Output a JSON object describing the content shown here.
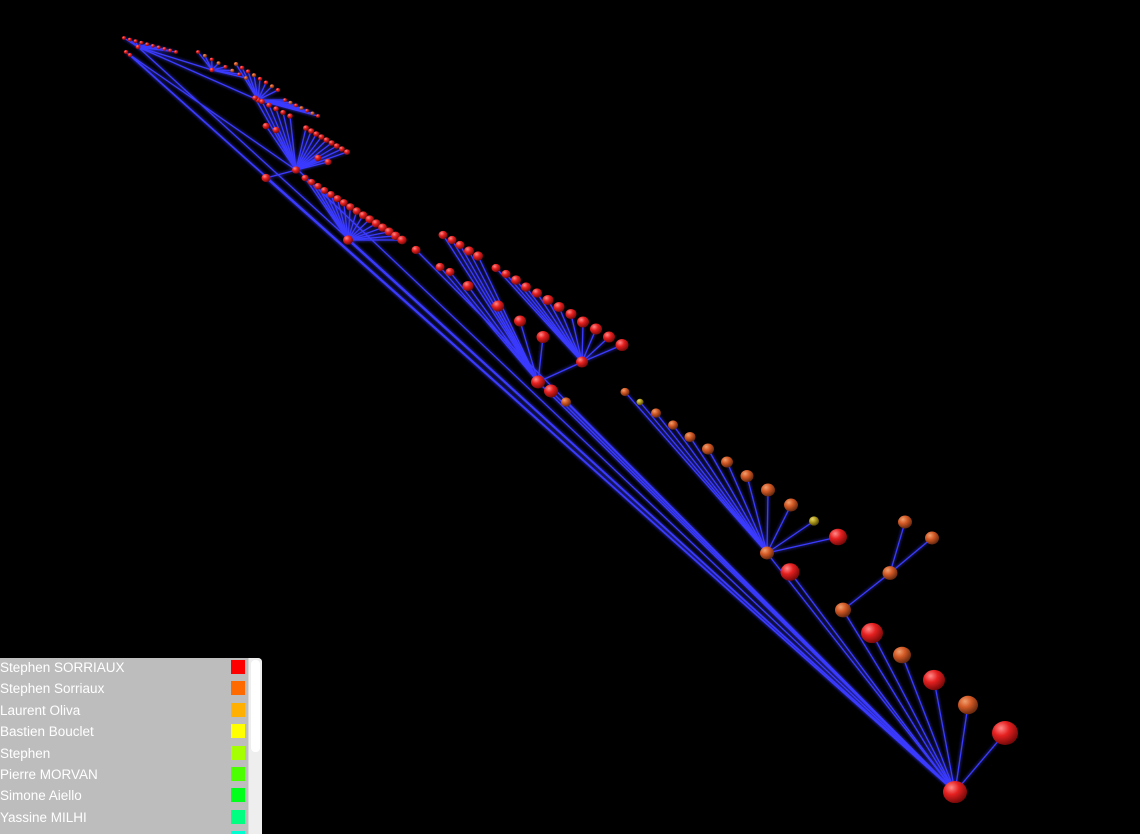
{
  "legend": {
    "items": [
      {
        "label": "Stephen SORRIAUX",
        "color": "#ff0000"
      },
      {
        "label": "Stephen Sorriaux",
        "color": "#ff6a00"
      },
      {
        "label": "Laurent Oliva",
        "color": "#ffb000"
      },
      {
        "label": "Bastien Bouclet",
        "color": "#ffff00"
      },
      {
        "label": "Stephen",
        "color": "#a6ff00"
      },
      {
        "label": "Pierre MORVAN",
        "color": "#4cff00"
      },
      {
        "label": "Simone Aiello",
        "color": "#00ff1a"
      },
      {
        "label": "Yassine MILHI",
        "color": "#00ff80"
      },
      {
        "label": "",
        "color": "#00ffd0"
      }
    ]
  },
  "graph": {
    "edge_color": "#3a3aff",
    "node_colors": {
      "red": "#e62020",
      "orange": "#d45a26",
      "olive": "#b4a020"
    }
  }
}
